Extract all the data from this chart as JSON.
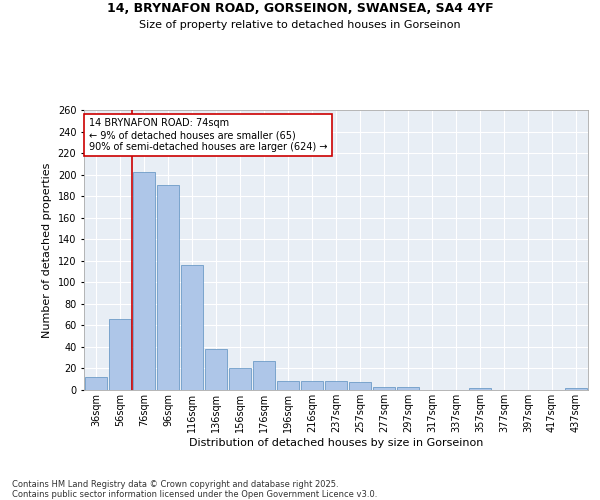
{
  "title_line1": "14, BRYNAFON ROAD, GORSEINON, SWANSEA, SA4 4YF",
  "title_line2": "Size of property relative to detached houses in Gorseinon",
  "xlabel": "Distribution of detached houses by size in Gorseinon",
  "ylabel": "Number of detached properties",
  "categories": [
    "36sqm",
    "56sqm",
    "76sqm",
    "96sqm",
    "116sqm",
    "136sqm",
    "156sqm",
    "176sqm",
    "196sqm",
    "216sqm",
    "237sqm",
    "257sqm",
    "277sqm",
    "297sqm",
    "317sqm",
    "337sqm",
    "357sqm",
    "377sqm",
    "397sqm",
    "417sqm",
    "437sqm"
  ],
  "values": [
    12,
    66,
    202,
    190,
    116,
    38,
    20,
    27,
    8,
    8,
    8,
    7,
    3,
    3,
    0,
    0,
    2,
    0,
    0,
    0,
    2
  ],
  "bar_color": "#aec6e8",
  "bar_edge_color": "#5a8fc0",
  "vline_x_index": 1.5,
  "vline_color": "#cc0000",
  "annotation_text": "14 BRYNAFON ROAD: 74sqm\n← 9% of detached houses are smaller (65)\n90% of semi-detached houses are larger (624) →",
  "annotation_box_color": "white",
  "annotation_box_edge_color": "#cc0000",
  "ylim": [
    0,
    260
  ],
  "yticks": [
    0,
    20,
    40,
    60,
    80,
    100,
    120,
    140,
    160,
    180,
    200,
    220,
    240,
    260
  ],
  "background_color": "#e8eef5",
  "grid_color": "#ffffff",
  "footnote": "Contains HM Land Registry data © Crown copyright and database right 2025.\nContains public sector information licensed under the Open Government Licence v3.0.",
  "title_fontsize": 9,
  "subtitle_fontsize": 8,
  "axis_label_fontsize": 8,
  "tick_fontsize": 7,
  "annotation_fontsize": 7,
  "footnote_fontsize": 6
}
